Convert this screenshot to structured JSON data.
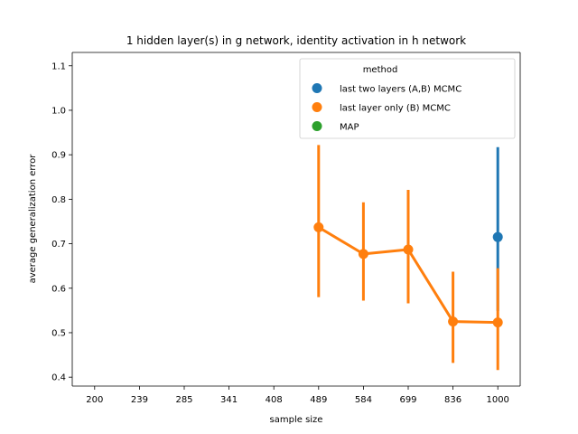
{
  "chart_data": {
    "type": "line",
    "title": "1 hidden layer(s) in g network, identity activation in h network",
    "xlabel": "sample size",
    "ylabel": "average generalization error",
    "categories": [
      "200",
      "239",
      "285",
      "341",
      "408",
      "489",
      "584",
      "699",
      "836",
      "1000"
    ],
    "ylim": [
      0.38,
      1.13
    ],
    "yticks": [
      0.4,
      0.5,
      0.6,
      0.7,
      0.8,
      0.9,
      1.0,
      1.1
    ],
    "ytick_labels": [
      "0.4",
      "0.5",
      "0.6",
      "0.7",
      "0.8",
      "0.9",
      "1.0",
      "1.1"
    ],
    "grid": false,
    "legend": {
      "title": "method",
      "position": "top-right"
    },
    "series": [
      {
        "name": "last two layers (A,B) MCMC",
        "color": "#1f77b4",
        "points": [
          {
            "x": "1000",
            "y": 0.715,
            "lo": 0.549,
            "hi": 0.917
          }
        ]
      },
      {
        "name": "last layer only (B) MCMC",
        "color": "#ff7f0e",
        "points": [
          {
            "x": "489",
            "y": 0.737,
            "lo": 0.58,
            "hi": 0.922
          },
          {
            "x": "584",
            "y": 0.677,
            "lo": 0.572,
            "hi": 0.793
          },
          {
            "x": "699",
            "y": 0.687,
            "lo": 0.566,
            "hi": 0.821
          },
          {
            "x": "836",
            "y": 0.525,
            "lo": 0.432,
            "hi": 0.637
          },
          {
            "x": "1000",
            "y": 0.523,
            "lo": 0.416,
            "hi": 0.645
          }
        ]
      },
      {
        "name": "MAP",
        "color": "#2ca02c",
        "points": []
      }
    ]
  }
}
